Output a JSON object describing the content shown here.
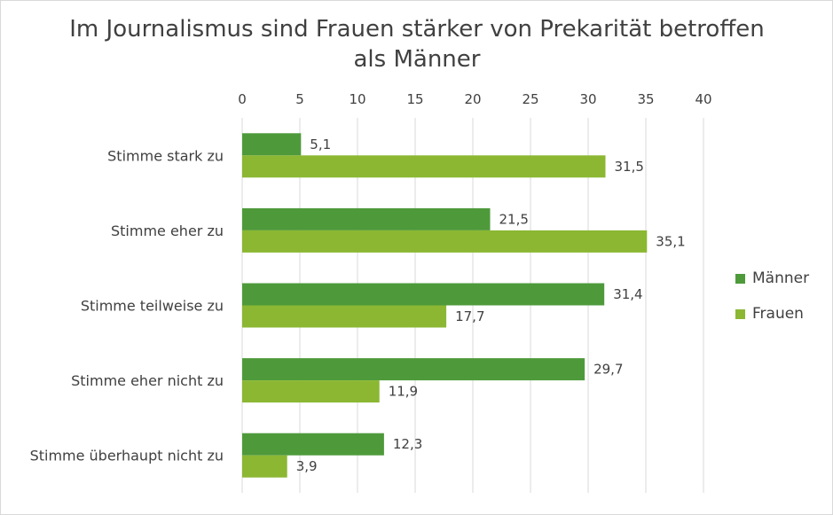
{
  "chart_data": {
    "type": "bar",
    "orientation": "horizontal",
    "title": "Im Journalismus sind Frauen stärker von Prekarität betroffen als Männer",
    "categories": [
      "Stimme stark zu",
      "Stimme eher zu",
      "Stimme teilweise zu",
      "Stimme eher nicht zu",
      "Stimme überhaupt nicht zu"
    ],
    "series": [
      {
        "name": "Männer",
        "values": [
          5.1,
          21.5,
          31.4,
          29.7,
          12.3
        ],
        "labels": [
          "5,1",
          "21,5",
          "31,4",
          "29,7",
          "12,3"
        ],
        "color": "#4e9a3b"
      },
      {
        "name": "Frauen",
        "values": [
          31.5,
          35.1,
          17.7,
          11.9,
          3.9
        ],
        "labels": [
          "31,5",
          "35,1",
          "17,7",
          "11,9",
          "3,9"
        ],
        "color": "#8bb733"
      }
    ],
    "xlim": [
      0,
      40
    ],
    "xticks": [
      "0",
      "5",
      "10",
      "15",
      "20",
      "25",
      "30",
      "35",
      "40"
    ],
    "xlabel": "",
    "ylabel": "",
    "x_axis_position": "top",
    "grid": true,
    "legend": "right"
  }
}
